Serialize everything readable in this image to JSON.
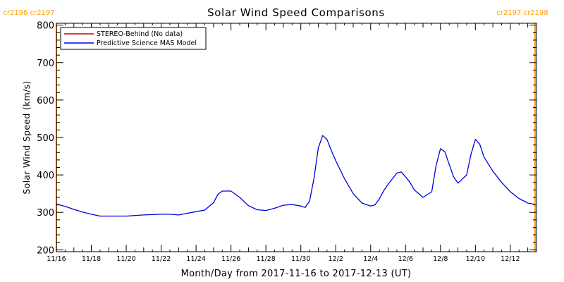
{
  "colors": {
    "carrington": "#ff9c00",
    "stereo": "#c00000",
    "model": "#0000e0",
    "axis": "#000000"
  },
  "carrington_labels": {
    "left": "cr2196 cr2197",
    "right": "cr2197 cr2198"
  },
  "chart_data": {
    "type": "line",
    "title": "Solar Wind Speed Comparisons",
    "xlabel": "Month/Day from 2017-11-16 to 2017-12-13 (UT)",
    "ylabel": "Solar Wind Speed (km/s)",
    "xlim": [
      "2017-11-16",
      "2017-12-13 12:00"
    ],
    "ylim": [
      195,
      805
    ],
    "yticks": [
      200,
      300,
      400,
      500,
      600,
      700,
      800
    ],
    "xtick_labels": [
      "11/16",
      "11/18",
      "11/20",
      "11/22",
      "11/24",
      "11/26",
      "11/28",
      "11/30",
      "12/2",
      "12/4",
      "12/6",
      "12/8",
      "12/10",
      "12/12"
    ],
    "legend_position": "top-left",
    "carrington_boundaries": [
      "2017-11-16",
      "2017-12-13 10:00"
    ],
    "series": [
      {
        "name": "STEREO-Behind (No data)",
        "color": "#c00000",
        "x": [],
        "y": []
      },
      {
        "name": "Predictive Science MAS Model",
        "color": "#0000e0",
        "x": [
          "2017-11-16 00:00",
          "2017-11-16 12:00",
          "2017-11-17 00:00",
          "2017-11-17 12:00",
          "2017-11-18 00:00",
          "2017-11-18 12:00",
          "2017-11-19 00:00",
          "2017-11-20 00:00",
          "2017-11-21 00:00",
          "2017-11-22 00:00",
          "2017-11-22 12:00",
          "2017-11-23 00:00",
          "2017-11-24 00:00",
          "2017-11-24 12:00",
          "2017-11-25 00:00",
          "2017-11-25 06:00",
          "2017-11-25 12:00",
          "2017-11-26 00:00",
          "2017-11-26 12:00",
          "2017-11-27 00:00",
          "2017-11-27 12:00",
          "2017-11-28 00:00",
          "2017-11-28 12:00",
          "2017-11-29 00:00",
          "2017-11-29 12:00",
          "2017-11-30 00:00",
          "2017-11-30 06:00",
          "2017-11-30 12:00",
          "2017-11-30 18:00",
          "2017-12-01 00:00",
          "2017-12-01 06:00",
          "2017-12-01 12:00",
          "2017-12-01 18:00",
          "2017-12-02 00:00",
          "2017-12-02 12:00",
          "2017-12-03 00:00",
          "2017-12-03 12:00",
          "2017-12-04 00:00",
          "2017-12-04 06:00",
          "2017-12-04 12:00",
          "2017-12-04 18:00",
          "2017-12-05 00:00",
          "2017-12-05 12:00",
          "2017-12-05 18:00",
          "2017-12-06 00:00",
          "2017-12-06 06:00",
          "2017-12-06 12:00",
          "2017-12-07 00:00",
          "2017-12-07 12:00",
          "2017-12-07 18:00",
          "2017-12-08 00:00",
          "2017-12-08 06:00",
          "2017-12-08 12:00",
          "2017-12-08 18:00",
          "2017-12-09 00:00",
          "2017-12-09 12:00",
          "2017-12-09 18:00",
          "2017-12-10 00:00",
          "2017-12-10 06:00",
          "2017-12-10 12:00",
          "2017-12-11 00:00",
          "2017-12-11 12:00",
          "2017-12-12 00:00",
          "2017-12-12 12:00",
          "2017-12-13 00:00",
          "2017-12-13 08:00"
        ],
        "y": [
          322,
          316,
          308,
          301,
          295,
          290,
          290,
          290,
          293,
          295,
          295,
          293,
          302,
          306,
          326,
          348,
          357,
          357,
          340,
          318,
          307,
          305,
          311,
          319,
          321,
          317,
          313,
          330,
          390,
          472,
          505,
          495,
          465,
          438,
          390,
          350,
          325,
          317,
          320,
          336,
          358,
          375,
          405,
          408,
          395,
          380,
          360,
          340,
          355,
          425,
          470,
          462,
          428,
          395,
          378,
          400,
          455,
          495,
          482,
          447,
          410,
          380,
          355,
          337,
          325,
          322
        ]
      }
    ]
  }
}
